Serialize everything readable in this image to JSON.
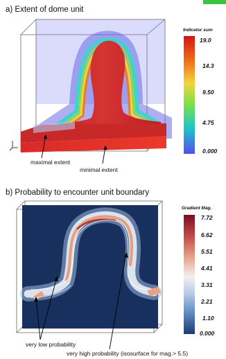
{
  "panel_a": {
    "title": "a) Extent of dome unit",
    "colorbar": {
      "title": "Indicator sum",
      "ticks": [
        "19.0",
        "14.3",
        "9.50",
        "4.75",
        "0.000"
      ],
      "stops": [
        "#d51414",
        "#f06a18",
        "#f3d33a",
        "#7be04a",
        "#1bc6c8",
        "#5a4cf0"
      ]
    },
    "annotations": [
      "maximal extent",
      "minimal extent"
    ],
    "colors": {
      "dome": "#cc2a2a",
      "envelope": "#6b6be6"
    }
  },
  "panel_b": {
    "title": "b) Probability to encounter unit boundary",
    "colorbar": {
      "title": "Gradient Mag.",
      "ticks": [
        "7.72",
        "6.62",
        "5.51",
        "4.41",
        "3.31",
        "2.21",
        "1.10",
        "0.000"
      ],
      "stops": [
        "#7a0d24",
        "#c44a4a",
        "#e8a58c",
        "#f2f0ee",
        "#b6cbe6",
        "#5e8cc4",
        "#1d3a74"
      ]
    },
    "annotations": [
      "very low probability",
      "very high probability (isosurface for mag.> 5.5)"
    ],
    "colors": {
      "background": "#17305e",
      "boundary": "#e9a184"
    }
  }
}
